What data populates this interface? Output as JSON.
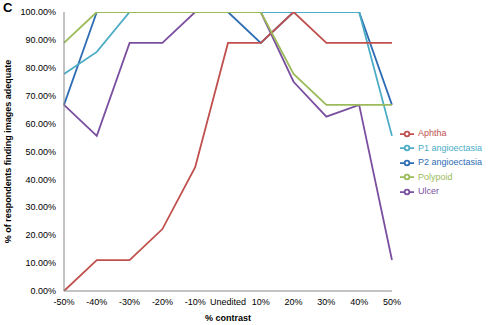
{
  "chart_data": {
    "type": "line",
    "title": "C",
    "x_label": "% contrast",
    "y_label": "% of respondents finding images adequate",
    "categories": [
      "-50%",
      "-40%",
      "-30%",
      "-20%",
      "-10%",
      "Unedited",
      "10%",
      "20%",
      "30%",
      "40%",
      "50%"
    ],
    "series": [
      {
        "name": "P2 angioectasia",
        "color": "#2E6DB4",
        "values": [
          66.7,
          100,
          100,
          100,
          100,
          100,
          88.9,
          100,
          100,
          100,
          66.7
        ]
      },
      {
        "name": "P1 angioectasia",
        "color": "#4BACC6",
        "values": [
          77.8,
          85.7,
          100,
          100,
          100,
          100,
          100,
          100,
          100,
          100,
          55.6
        ]
      },
      {
        "name": "Ulcer",
        "color": "#7B4FA0",
        "values": [
          66.7,
          55.6,
          88.9,
          88.9,
          100,
          100,
          100,
          75,
          62.5,
          66.7,
          11.1
        ]
      },
      {
        "name": "Aphtha",
        "color": "#C0504D",
        "values": [
          0,
          11.1,
          11.1,
          22.2,
          44.4,
          88.9,
          88.9,
          100,
          88.9,
          88.9,
          88.9
        ]
      },
      {
        "name": "Polypoid",
        "color": "#9BBB59",
        "values": [
          88.9,
          100,
          100,
          100,
          100,
          100,
          100,
          77.8,
          66.7,
          66.7,
          66.7
        ]
      }
    ],
    "ylim": [
      0,
      100
    ],
    "yticks": [
      {
        "value": 0,
        "label": "0.00%"
      },
      {
        "value": 10,
        "label": "10.00%"
      },
      {
        "value": 20,
        "label": "20.00%"
      },
      {
        "value": 30,
        "label": "30.00%"
      },
      {
        "value": 40,
        "label": "40.00%"
      },
      {
        "value": 50,
        "label": "50.00%"
      },
      {
        "value": 60,
        "label": "60.00%"
      },
      {
        "value": 70,
        "label": "70.00%"
      },
      {
        "value": 80,
        "label": "80.00%"
      },
      {
        "value": 90,
        "label": "90.00%"
      },
      {
        "value": 100,
        "label": "100.00%"
      }
    ],
    "grid": false,
    "legend": "right"
  }
}
